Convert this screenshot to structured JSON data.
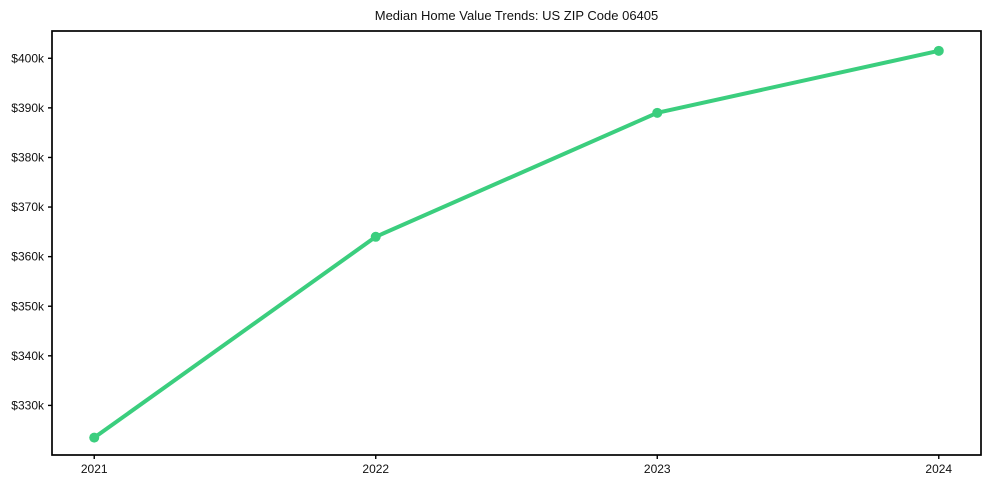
{
  "chart_data": {
    "type": "line",
    "title": "Median Home Value Trends: US ZIP Code 06405",
    "x": [
      2021,
      2022,
      2023,
      2024
    ],
    "values": [
      323500,
      364000,
      389000,
      401500
    ],
    "xlabel": "",
    "ylabel": "",
    "xlim": [
      2020.85,
      2024.15
    ],
    "ylim": [
      320000,
      405500
    ],
    "xticks": [
      {
        "value": 2021,
        "label": "2021"
      },
      {
        "value": 2022,
        "label": "2022"
      },
      {
        "value": 2023,
        "label": "2023"
      },
      {
        "value": 2024,
        "label": "2024"
      }
    ],
    "yticks": [
      {
        "value": 330000,
        "label": "$330k"
      },
      {
        "value": 340000,
        "label": "$340k"
      },
      {
        "value": 350000,
        "label": "$350k"
      },
      {
        "value": 360000,
        "label": "$360k"
      },
      {
        "value": 370000,
        "label": "$370k"
      },
      {
        "value": 380000,
        "label": "$380k"
      },
      {
        "value": 390000,
        "label": "$390k"
      },
      {
        "value": 400000,
        "label": "$400k"
      }
    ],
    "grid": false,
    "legend_position": "none",
    "colors": {
      "line": "#3bce7e",
      "marker": "#3bce7e",
      "axis": "#000000",
      "text": "#111111",
      "background": "#ffffff"
    },
    "marker_style": "circle",
    "line_width": 4,
    "marker_radius": 5
  }
}
